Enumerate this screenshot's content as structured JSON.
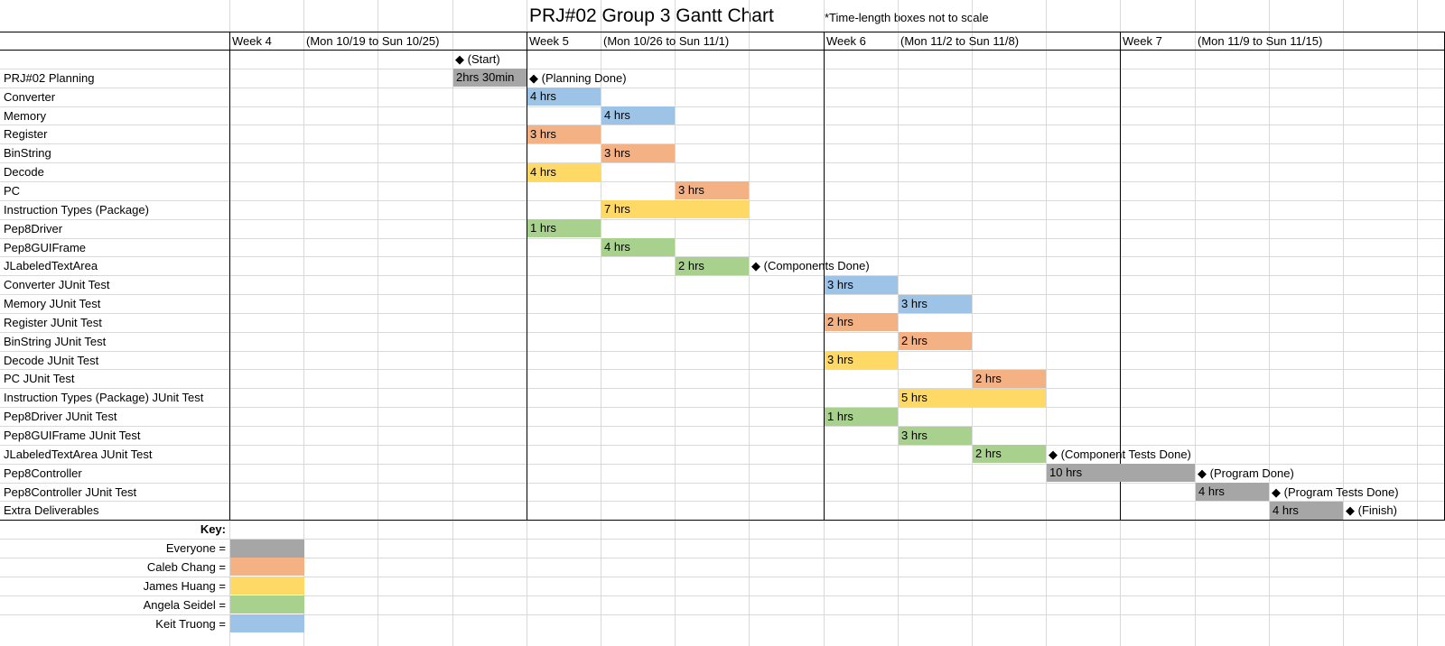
{
  "colors": {
    "Everyone": "#a6a6a6",
    "Caleb Chang": "#f4b183",
    "James Huang": "#ffd966",
    "Angela Seidel": "#a9d18e",
    "Keit Truong": "#9dc3e6"
  },
  "chart_data": {
    "type": "table",
    "title": "PRJ#02 Group 3 Gantt Chart",
    "note": "*Time-length boxes not to scale",
    "weeks": [
      {
        "label": "Week 4",
        "range": "(Mon 10/19 to Sun 10/25)"
      },
      {
        "label": "Week 5",
        "range": "(Mon 10/26 to Sun 11/1)"
      },
      {
        "label": "Week 6",
        "range": "(Mon 11/2 to Sun 11/8)"
      },
      {
        "label": "Week 7",
        "range": "(Mon 11/9 to Sun 11/15)"
      }
    ],
    "start_marker": "◆ (Start)",
    "tasks": [
      {
        "name": "PRJ#02 Planning",
        "start": 3,
        "span": 1,
        "duration": "2hrs 30min",
        "owner": "Everyone",
        "milestone": "◆ (Planning Done)"
      },
      {
        "name": "Converter",
        "start": 4,
        "span": 1,
        "duration": "4 hrs",
        "owner": "Keit Truong",
        "milestone": ""
      },
      {
        "name": "Memory",
        "start": 5,
        "span": 1,
        "duration": "4 hrs",
        "owner": "Keit Truong",
        "milestone": ""
      },
      {
        "name": "Register",
        "start": 4,
        "span": 1,
        "duration": "3 hrs",
        "owner": "Caleb Chang",
        "milestone": ""
      },
      {
        "name": "BinString",
        "start": 5,
        "span": 1,
        "duration": "3 hrs",
        "owner": "Caleb Chang",
        "milestone": ""
      },
      {
        "name": "Decode",
        "start": 4,
        "span": 1,
        "duration": "4 hrs",
        "owner": "James Huang",
        "milestone": ""
      },
      {
        "name": "PC",
        "start": 6,
        "span": 1,
        "duration": "3 hrs",
        "owner": "Caleb Chang",
        "milestone": ""
      },
      {
        "name": "Instruction Types (Package)",
        "start": 5,
        "span": 2,
        "duration": "7 hrs",
        "owner": "James Huang",
        "milestone": ""
      },
      {
        "name": "Pep8Driver",
        "start": 4,
        "span": 1,
        "duration": "1 hrs",
        "owner": "Angela Seidel",
        "milestone": ""
      },
      {
        "name": "Pep8GUIFrame",
        "start": 5,
        "span": 1,
        "duration": "4 hrs",
        "owner": "Angela Seidel",
        "milestone": ""
      },
      {
        "name": "JLabeledTextArea",
        "start": 6,
        "span": 1,
        "duration": "2 hrs",
        "owner": "Angela Seidel",
        "milestone": "◆ (Components Done)"
      },
      {
        "name": "Converter JUnit Test",
        "start": 8,
        "span": 1,
        "duration": "3 hrs",
        "owner": "Keit Truong",
        "milestone": ""
      },
      {
        "name": "Memory JUnit Test",
        "start": 9,
        "span": 1,
        "duration": "3 hrs",
        "owner": "Keit Truong",
        "milestone": ""
      },
      {
        "name": "Register JUnit Test",
        "start": 8,
        "span": 1,
        "duration": "2 hrs",
        "owner": "Caleb Chang",
        "milestone": ""
      },
      {
        "name": "BinString JUnit Test",
        "start": 9,
        "span": 1,
        "duration": "2 hrs",
        "owner": "Caleb Chang",
        "milestone": ""
      },
      {
        "name": "Decode JUnit Test",
        "start": 8,
        "span": 1,
        "duration": "3 hrs",
        "owner": "James Huang",
        "milestone": ""
      },
      {
        "name": "PC JUnit Test",
        "start": 10,
        "span": 1,
        "duration": "2 hrs",
        "owner": "Caleb Chang",
        "milestone": ""
      },
      {
        "name": "Instruction Types (Package) JUnit Test",
        "start": 9,
        "span": 2,
        "duration": "5 hrs",
        "owner": "James Huang",
        "milestone": ""
      },
      {
        "name": "Pep8Driver JUnit Test",
        "start": 8,
        "span": 1,
        "duration": "1 hrs",
        "owner": "Angela Seidel",
        "milestone": ""
      },
      {
        "name": "Pep8GUIFrame JUnit Test",
        "start": 9,
        "span": 1,
        "duration": "3 hrs",
        "owner": "Angela Seidel",
        "milestone": ""
      },
      {
        "name": "JLabeledTextArea JUnit Test",
        "start": 10,
        "span": 1,
        "duration": "2 hrs",
        "owner": "Angela Seidel",
        "milestone": "◆ (Component Tests Done)"
      },
      {
        "name": "Pep8Controller",
        "start": 11,
        "span": 2,
        "duration": "10 hrs",
        "owner": "Everyone",
        "milestone": "◆ (Program Done)"
      },
      {
        "name": "Pep8Controller JUnit Test",
        "start": 13,
        "span": 1,
        "duration": "4 hrs",
        "owner": "Everyone",
        "milestone": "◆ (Program Tests Done)"
      },
      {
        "name": "Extra Deliverables",
        "start": 14,
        "span": 1,
        "duration": "4 hrs",
        "owner": "Everyone",
        "milestone": "◆ (Finish)"
      }
    ],
    "key": {
      "title": "Key:",
      "entries": [
        {
          "label": "Everyone =",
          "owner": "Everyone"
        },
        {
          "label": "Caleb Chang =",
          "owner": "Caleb Chang"
        },
        {
          "label": "James Huang =",
          "owner": "James Huang"
        },
        {
          "label": "Angela Seidel =",
          "owner": "Angela Seidel"
        },
        {
          "label": "Keit Truong =",
          "owner": "Keit Truong"
        }
      ]
    }
  }
}
